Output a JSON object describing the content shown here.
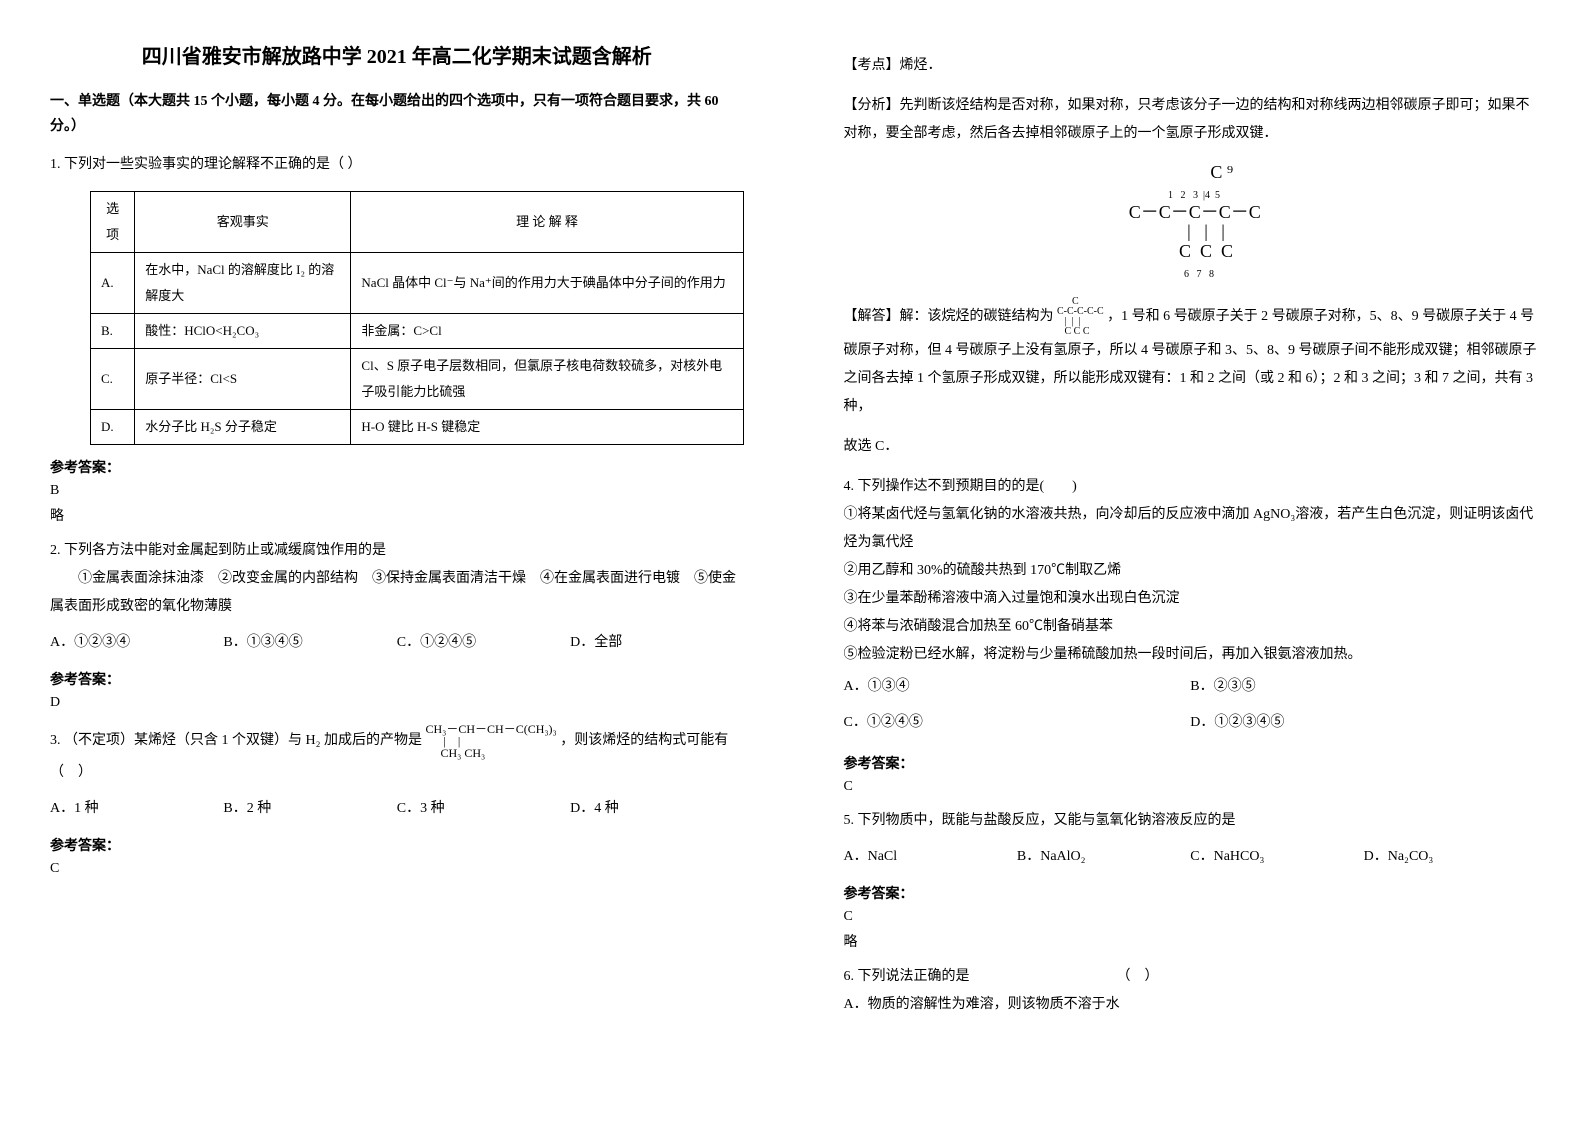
{
  "title": "四川省雅安市解放路中学 2021 年高二化学期末试题含解析",
  "section1": "一、单选题（本大题共 15 个小题，每小题 4 分。在每小题给出的四个选项中，只有一项符合题目要求，共 60 分。）",
  "q1": {
    "text": "1. 下列对一些实验事实的理论解释不正确的是（  ）",
    "table": {
      "headers": [
        "选项",
        "客观事实",
        "理 论 解 释"
      ],
      "rows": [
        [
          "A.",
          "在水中，NaCl 的溶解度比 I₂ 的溶解度大",
          "NaCl 晶体中 Cl⁻与 Na⁺间的作用力大于碘晶体中分子间的作用力"
        ],
        [
          "B.",
          "酸性：HClO<H₂CO₃",
          "非金属：C>Cl"
        ],
        [
          "C.",
          "原子半径：Cl<S",
          "Cl、S 原子电子层数相同，但氯原子核电荷数较硫多，对核外电子吸引能力比硫强"
        ],
        [
          "D.",
          "水分子比 H₂S 分子稳定",
          "H-O 键比 H-S 键稳定"
        ]
      ]
    },
    "answer_label": "参考答案：",
    "answer": "B",
    "note": "略"
  },
  "q2": {
    "text": "2. 下列各方法中能对金属起到防止或减缓腐蚀作用的是",
    "detail": "　①金属表面涂抹油漆　②改变金属的内部结构　③保持金属表面清洁干燥　④在金属表面进行电镀　⑤使金属表面形成致密的氧化物薄膜",
    "options": [
      "A．①②③④",
      "B．①③④⑤",
      "C．①②④⑤",
      "D．全部"
    ],
    "answer_label": "参考答案：",
    "answer": "D"
  },
  "q3": {
    "text_pre": "3. （不定项）某烯烃（只含 1 个双键）与 H₂ 加成后的产物是",
    "text_post": "，则该烯烃的结构式可能有（　）",
    "structure_top": "CH₃－CH－CH－C(CH₃)₃",
    "structure_mid": "      |    |",
    "structure_bot": "     CH₃ CH₃",
    "options": [
      "A．1 种",
      "B．2 种",
      "C．3 种",
      "D．4 种"
    ],
    "answer_label": "参考答案：",
    "answer": "C"
  },
  "right": {
    "kaodian": "【考点】烯烃．",
    "fenxi": "【分析】先判断该烃结构是否对称，如果对称，只考虑该分子一边的结构和对称线两边相邻碳原子即可；如果不对称，要全部考虑，然后各去掉相邻碳原子上的一个氢原子形成双键．",
    "diagram_top": "              C ⁹",
    "diagram_nums": "   1   2   3  |4  5",
    "diagram_main": "  C－C－C－C－C",
    "diagram_bars": "       |   |   |",
    "diagram_bot": "       C  C  C",
    "diagram_sub": "       6   7   8",
    "jieda_pre": "【解答】解：该烷烃的碳链结构为",
    "jieda_post": "，1 号和 6 号碳原子关于 2 号碳原子对称，5、8、9 号碳原子关于 4 号碳原子对称，但 4 号碳原子上没有氢原子，所以 4 号碳原子和 3、5、8、9 号碳原子间不能形成双键；相邻碳原子之间各去掉 1 个氢原子形成双键，所以能形成双键有：1 和 2 之间（或 2 和 6）；2 和 3 之间；3 和 7 之间，共有 3 种，",
    "jieda_end": "故选 C．"
  },
  "q4": {
    "text": "4. 下列操作达不到预期目的的是(　　)",
    "items": [
      "①将某卤代烃与氢氧化钠的水溶液共热，向冷却后的反应液中滴加 AgNO₃溶液，若产生白色沉淀，则证明该卤代烃为氯代烃",
      "②用乙醇和 30%的硫酸共热到 170℃制取乙烯",
      "③在少量苯酚稀溶液中滴入过量饱和溴水出现白色沉淀",
      "④将苯与浓硝酸混合加热至 60℃制备硝基苯",
      "⑤检验淀粉已经水解，将淀粉与少量稀硫酸加热一段时间后，再加入银氨溶液加热。"
    ],
    "options": [
      "A．①③④",
      "B．②③⑤",
      "C．①②④⑤",
      "D．①②③④⑤"
    ],
    "answer_label": "参考答案：",
    "answer": "C"
  },
  "q5": {
    "text": "5. 下列物质中，既能与盐酸反应，又能与氢氧化钠溶液反应的是",
    "options": [
      "A．NaCl",
      "B．NaAlO₂",
      "C．NaHCO₃",
      "D．Na₂CO₃"
    ],
    "answer_label": "参考答案：",
    "answer": "C",
    "note": "略"
  },
  "q6": {
    "text": "6. 下列说法正确的是　　　　　　　　　　　（　）",
    "optA": "A．物质的溶解性为难溶，则该物质不溶于水"
  }
}
